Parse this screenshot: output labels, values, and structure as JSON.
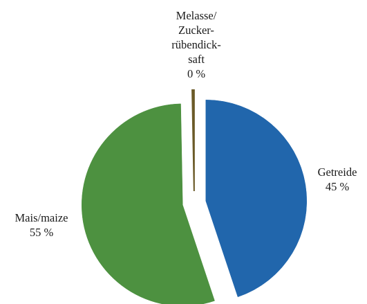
{
  "chart_data": {
    "type": "pie",
    "title": "",
    "slices": [
      {
        "label_lines": [
          "Getreide"
        ],
        "value": 45,
        "value_label": "45 %",
        "color": "#2166ac"
      },
      {
        "label_lines": [
          "Mais/maize"
        ],
        "value": 55,
        "value_label": "55 %",
        "color": "#4d9140"
      },
      {
        "label_lines": [
          "Melasse/",
          "Zucker-",
          "rübendick-",
          "saft"
        ],
        "value": 0.3,
        "value_label": "0 %",
        "color": "#6b5a28"
      }
    ],
    "exploded": true,
    "legend": "none"
  }
}
